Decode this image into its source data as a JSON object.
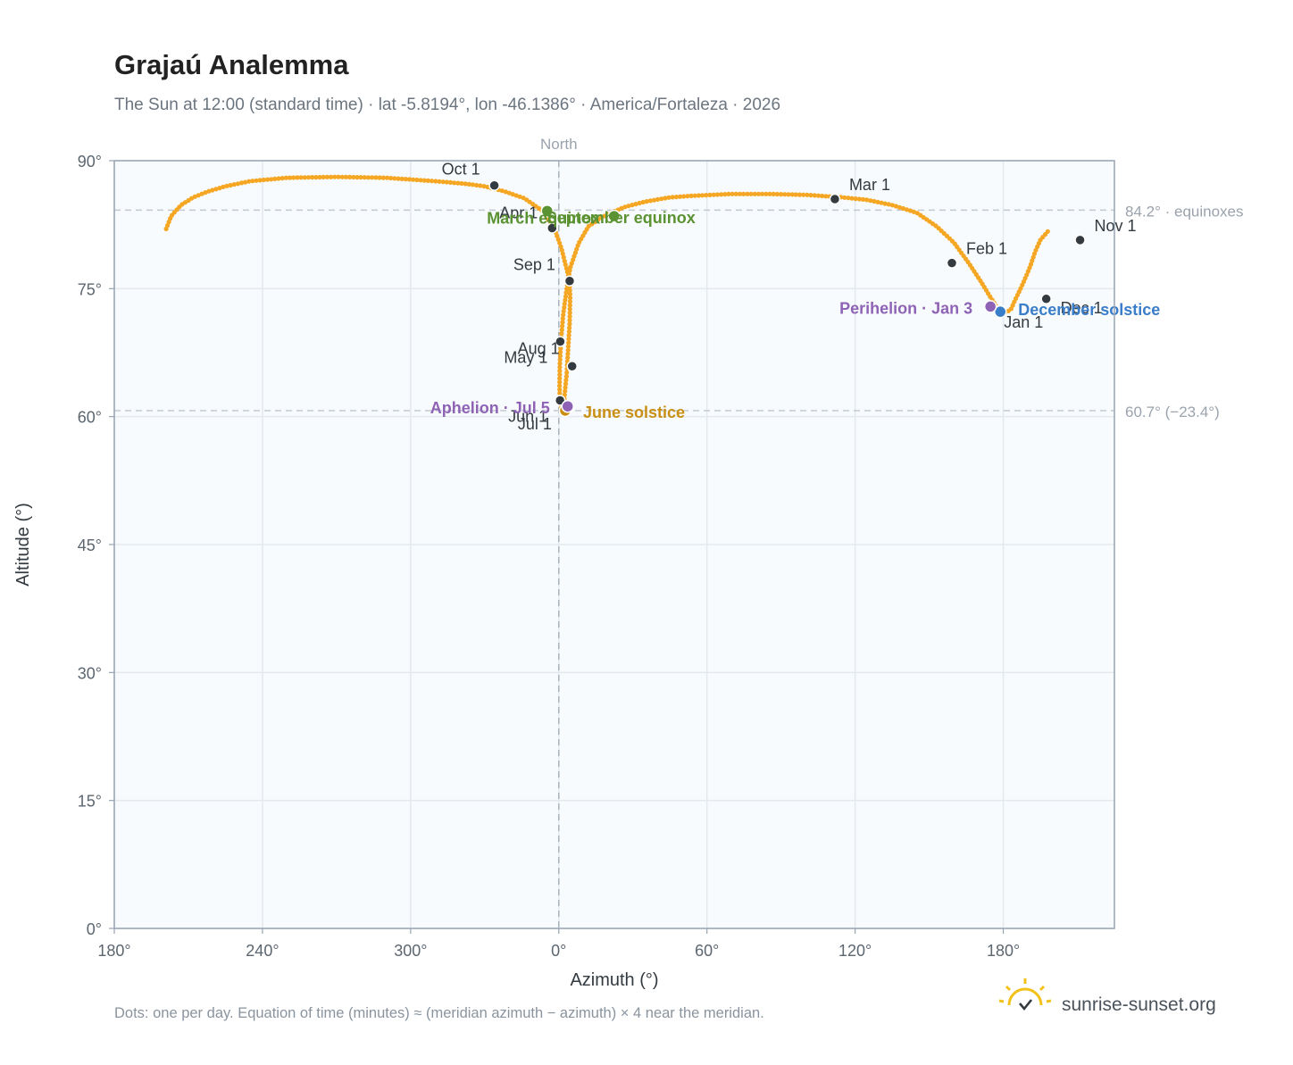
{
  "header": {
    "title": "Grajaú Analemma",
    "subtitle": "The Sun at 12:00 (standard time) · lat -5.8194°, lon -46.1386° · America/Fortaleza · 2026"
  },
  "footer": {
    "note": "Dots: one per day. Equation of time (minutes) ≈ (meridian azimuth − azimuth) × 4 near the meridian.",
    "brand": "sunrise-sunset.org"
  },
  "colors": {
    "curve": "#f5a623",
    "month_point": "#333a40",
    "equinox": "#5b9232",
    "solstice_june": "#c98f14",
    "solstice_december": "#3a7dc9",
    "apsis": "#8e63b5",
    "reference": "#9aa3ad",
    "axis": "#98a4b3",
    "plot_bg": "#f8fbfd",
    "grid": "#e4e9ee"
  },
  "chart_data": {
    "type": "scatter",
    "xlabel": "Azimuth (°)",
    "ylabel": "Altitude (°)",
    "xlim": [
      180,
      217
    ],
    "ylim": [
      0,
      90
    ],
    "x_axis_note": "azimuth axis unwrapped: starts at 180°, passes 240°, 300°, 0° (North), 60°, 120°, 180° again",
    "x_ticks": [
      {
        "unwrapped": 180,
        "label": "180°"
      },
      {
        "unwrapped": 240,
        "label": "240°"
      },
      {
        "unwrapped": 300,
        "label": "300°"
      },
      {
        "unwrapped": 360,
        "label": "0°"
      },
      {
        "unwrapped": 420,
        "label": "60°"
      },
      {
        "unwrapped": 480,
        "label": "120°"
      },
      {
        "unwrapped": 540,
        "label": "180°"
      }
    ],
    "x_range_unwrapped": [
      180,
      585
    ],
    "y_ticks": [
      {
        "value": 0,
        "label": "0°"
      },
      {
        "value": 15,
        "label": "15°"
      },
      {
        "value": 30,
        "label": "30°"
      },
      {
        "value": 45,
        "label": "45°"
      },
      {
        "value": 60,
        "label": "60°"
      },
      {
        "value": 75,
        "label": "75°"
      },
      {
        "value": 90,
        "label": "90°"
      }
    ],
    "grid": true,
    "north_line": {
      "azimuth_unwrapped": 360,
      "label": "North"
    },
    "reference_lines": [
      {
        "altitude": 84.2,
        "label": "84.2° · equinoxes"
      },
      {
        "altitude": 60.7,
        "label": "60.7° (−23.4°)"
      }
    ],
    "curve_points": [
      [
        201,
        82
      ],
      [
        203,
        83.5
      ],
      [
        207,
        84.8
      ],
      [
        212,
        85.7
      ],
      [
        218,
        86.4
      ],
      [
        225,
        87
      ],
      [
        235,
        87.6
      ],
      [
        250,
        88
      ],
      [
        270,
        88.1
      ],
      [
        290,
        88
      ],
      [
        310,
        87.6
      ],
      [
        322,
        87.3
      ],
      [
        330,
        87
      ],
      [
        338,
        86.4
      ],
      [
        346,
        85.6
      ],
      [
        353,
        84.2
      ],
      [
        358,
        82.2
      ],
      [
        361,
        79.8
      ],
      [
        363,
        77.5
      ],
      [
        364.3,
        76
      ],
      [
        364.6,
        74
      ],
      [
        364.4,
        71
      ],
      [
        363.8,
        68
      ],
      [
        363.2,
        65
      ],
      [
        362.5,
        63
      ],
      [
        362,
        61.3
      ],
      [
        361.5,
        60.7
      ],
      [
        361,
        60.9
      ],
      [
        360.4,
        62
      ],
      [
        360.3,
        63.5
      ],
      [
        360.4,
        66
      ],
      [
        360.9,
        68.9
      ],
      [
        361.8,
        72
      ],
      [
        363.2,
        75
      ],
      [
        364.7,
        77.5
      ],
      [
        368,
        80.3
      ],
      [
        372,
        82.3
      ],
      [
        377,
        83.3
      ],
      [
        382,
        84
      ],
      [
        387,
        84.6
      ],
      [
        395,
        85.2
      ],
      [
        405,
        85.7
      ],
      [
        415,
        85.9
      ],
      [
        430,
        86.1
      ],
      [
        445,
        86.1
      ],
      [
        460,
        86
      ],
      [
        475,
        85.7
      ],
      [
        485,
        85.4
      ],
      [
        495,
        84.8
      ],
      [
        505,
        83.9
      ],
      [
        513,
        82.3
      ],
      [
        520,
        80.4
      ],
      [
        526,
        78
      ],
      [
        531,
        75.8
      ],
      [
        535,
        73.9
      ],
      [
        538,
        72.6
      ],
      [
        540.5,
        72.2
      ],
      [
        543,
        72.5
      ],
      [
        545,
        73.8
      ],
      [
        548,
        75.6
      ],
      [
        551,
        77.7
      ],
      [
        553,
        79.4
      ],
      [
        555,
        80.7
      ],
      [
        558,
        81.7
      ]
    ],
    "month_points": [
      {
        "label": "Jan 1",
        "az": 538.8,
        "alt": 72.5
      },
      {
        "label": "Feb 1",
        "az": 519.2,
        "alt": 78
      },
      {
        "label": "Mar 1",
        "az": 471.8,
        "alt": 85.5
      },
      {
        "label": "Apr 1",
        "az": 357.3,
        "alt": 82.1
      },
      {
        "label": "May 1",
        "az": 360.6,
        "alt": 68.8
      },
      {
        "label": "Jun 1",
        "az": 360.5,
        "alt": 61.9
      },
      {
        "label": "Jul 1",
        "az": 362.2,
        "alt": 60.6
      },
      {
        "label": "Aug 1",
        "az": 365.4,
        "alt": 65.9
      },
      {
        "label": "Sep 1",
        "az": 364.4,
        "alt": 75.9
      },
      {
        "label": "Oct 1",
        "az": 333.9,
        "alt": 87.1
      },
      {
        "label": "Nov 1",
        "az": 571.1,
        "alt": 80.7
      },
      {
        "label": "Dec 1",
        "az": 557.4,
        "alt": 73.8
      }
    ],
    "events": [
      {
        "label": "March equinox",
        "az": 355.3,
        "alt": 84.1,
        "color_key": "equinox"
      },
      {
        "label": "September equinox",
        "az": 382.4,
        "alt": 83.5,
        "color_key": "equinox"
      },
      {
        "label": "June solstice",
        "az": 362.6,
        "alt": 60.7,
        "color_key": "solstice_june"
      },
      {
        "label": "December solstice",
        "az": 538.8,
        "alt": 72.3,
        "color_key": "solstice_december"
      },
      {
        "label": "Perihelion · Jan 3",
        "az": 534.8,
        "alt": 72.9,
        "color_key": "apsis"
      },
      {
        "label": "Aphelion · Jul 5",
        "az": 363.6,
        "alt": 61.2,
        "color_key": "apsis"
      }
    ]
  }
}
